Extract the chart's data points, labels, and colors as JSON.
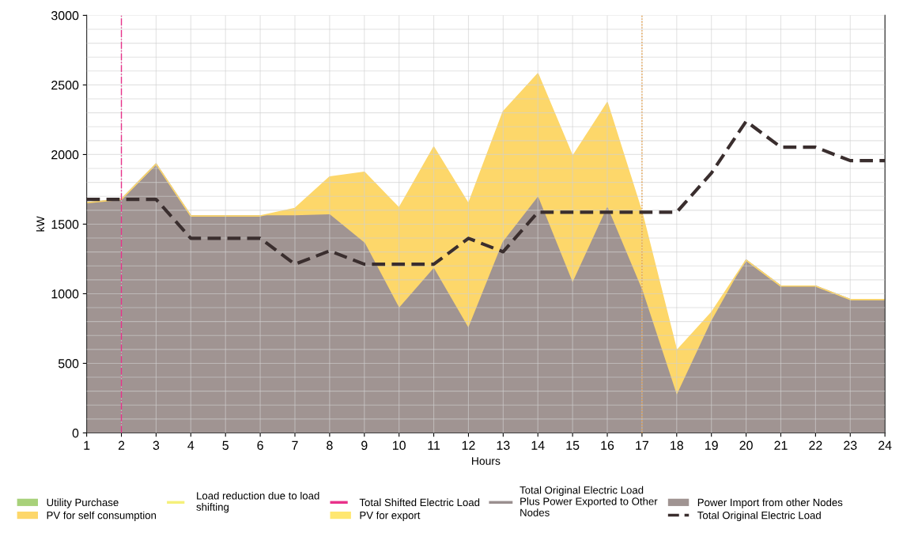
{
  "chart_data": {
    "type": "area",
    "stacked": true,
    "xlabel": "Hours",
    "ylabel": "kW",
    "x": [
      1,
      2,
      3,
      4,
      5,
      6,
      7,
      8,
      9,
      10,
      11,
      12,
      13,
      14,
      15,
      16,
      17,
      18,
      19,
      20,
      21,
      22,
      23,
      24
    ],
    "xlim": [
      1,
      24
    ],
    "xticks": [
      1,
      2,
      3,
      4,
      5,
      6,
      7,
      8,
      9,
      10,
      11,
      12,
      13,
      14,
      15,
      16,
      17,
      18,
      19,
      20,
      21,
      22,
      23,
      24
    ],
    "ylim": [
      0,
      3000
    ],
    "yticks": [
      0,
      {
        "value": 100,
        "label": null
      },
      {
        "value": 200,
        "label": null
      },
      {
        "value": 300,
        "label": null
      },
      {
        "value": 400,
        "label": null
      },
      500,
      {
        "value": 600,
        "label": null
      },
      {
        "value": 700,
        "label": null
      },
      {
        "value": 800,
        "label": null
      },
      {
        "value": 900,
        "label": null
      },
      1000,
      {
        "value": 1100,
        "label": null
      },
      {
        "value": 1200,
        "label": null
      },
      {
        "value": 1300,
        "label": null
      },
      {
        "value": 1400,
        "label": null
      },
      1500,
      {
        "value": 1600,
        "label": null
      },
      {
        "value": 1700,
        "label": null
      },
      {
        "value": 1800,
        "label": null
      },
      {
        "value": 1900,
        "label": null
      },
      2000,
      {
        "value": 2100,
        "label": null
      },
      {
        "value": 2200,
        "label": null
      },
      {
        "value": 2300,
        "label": null
      },
      {
        "value": 2400,
        "label": null
      },
      2500,
      {
        "value": 2600,
        "label": null
      },
      {
        "value": 2700,
        "label": null
      },
      {
        "value": 2800,
        "label": null
      },
      {
        "value": 2900,
        "label": null
      },
      3000
    ],
    "grid": true,
    "legend": "bottom",
    "series": [
      {
        "name": "Power Import from other Nodes",
        "color": "#a09492",
        "values": [
          1654,
          1678,
          1932,
          1559,
          1559,
          1559,
          1559,
          1566,
          1362,
          893,
          1178,
          747,
          1369,
          1690,
          1072,
          1615,
          1021,
          263,
          797,
          1241,
          1055,
          1055,
          958,
          958
        ]
      },
      {
        "name": "PV for self consumption",
        "color": "#fdd76a",
        "values": [
          0,
          0,
          0,
          0,
          0,
          0,
          54,
          272,
          511,
          722,
          875,
          898,
          938,
          890,
          914,
          757,
          561,
          327,
          67,
          0,
          0,
          0,
          0,
          0
        ]
      },
      {
        "name": "Utility Purchase",
        "color": "#a8d17a",
        "values": [
          null,
          null,
          null,
          null,
          null,
          null,
          null,
          null,
          null,
          null,
          null,
          null,
          null,
          null,
          null,
          null,
          null,
          null,
          null,
          null,
          null,
          null,
          null,
          null
        ]
      },
      {
        "name": "PV for export",
        "color": "#ffe770",
        "values": [
          null,
          null,
          null,
          null,
          null,
          null,
          null,
          null,
          null,
          null,
          null,
          null,
          null,
          null,
          null,
          null,
          null,
          null,
          null,
          null,
          null,
          null,
          null,
          null
        ]
      },
      {
        "name": "Load reduction due to load\nshifting",
        "type": "line",
        "color": "#f5f07a",
        "line_style": "dashdot",
        "values": [
          null,
          null,
          null,
          null,
          null,
          null,
          null,
          null,
          null,
          null,
          null,
          null,
          null,
          null,
          null,
          null,
          null,
          null,
          null,
          null,
          null,
          null,
          null,
          null
        ]
      },
      {
        "name": "Total Shifted Electric Load",
        "type": "line",
        "color": "#e8318a",
        "line_style": "dashdot",
        "values": [
          null,
          null,
          null,
          null,
          null,
          null,
          null,
          null,
          null,
          null,
          null,
          null,
          null,
          null,
          null,
          null,
          null,
          null,
          null,
          null,
          null,
          null,
          null,
          null
        ]
      },
      {
        "name": "Total Original Electric Load\nPlus Power Exported to Other\nNodes",
        "type": "line",
        "color": "#9a8f8f",
        "line_style": "solid",
        "values": [
          null,
          null,
          null,
          null,
          null,
          null,
          null,
          null,
          null,
          null,
          null,
          null,
          null,
          null,
          null,
          null,
          null,
          null,
          null,
          null,
          null,
          null,
          null,
          null
        ]
      },
      {
        "name": "Total Original Electric Load",
        "type": "line",
        "color": "#3a2e2e",
        "line_style": "dashed",
        "values": [
          1678,
          1678,
          1678,
          1398,
          1398,
          1398,
          1212,
          1308,
          1212,
          1212,
          1212,
          1398,
          1301,
          1586,
          1586,
          1586,
          1586,
          1586,
          1867,
          2239,
          2053,
          2053,
          1956,
          1956
        ]
      }
    ],
    "ref_lines": [
      {
        "axis": "x",
        "value": 2,
        "label": null,
        "color": "#e8318a",
        "line_style": "dashdot"
      },
      {
        "axis": "x",
        "value": 17,
        "label": null,
        "color": "#e89a3a",
        "line_style": "dotted"
      }
    ]
  }
}
